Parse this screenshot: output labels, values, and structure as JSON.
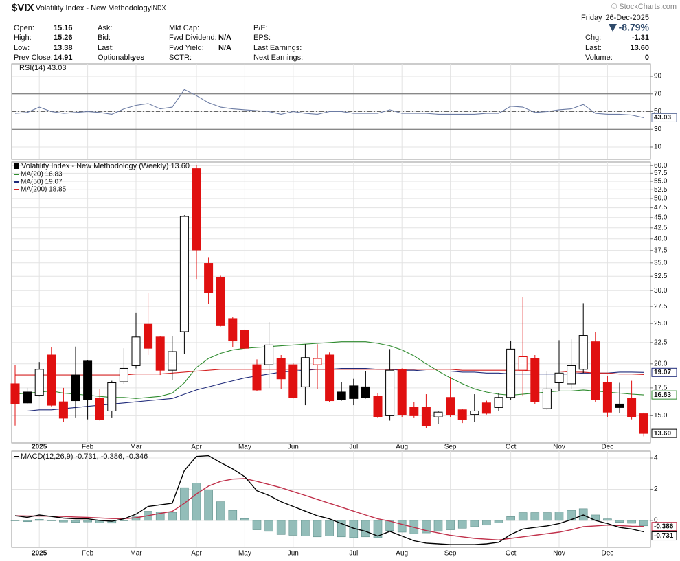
{
  "header": {
    "symbol": "$VIX",
    "name": "Volatility Index - New Methodology",
    "exchange": "INDX",
    "copyright": "© StockCharts.com",
    "weekday": "Friday",
    "date": "26-Dec-2025",
    "change_pct": "-8.79%",
    "columns": [
      [
        {
          "label": "Open:",
          "value": "15.16"
        },
        {
          "label": "High:",
          "value": "15.26"
        },
        {
          "label": "Low:",
          "value": "13.38"
        },
        {
          "label": "Prev Close:",
          "value": "14.91"
        }
      ],
      [
        {
          "label": "Ask:"
        },
        {
          "label": "Bid:"
        },
        {
          "label": "Last:"
        },
        {
          "label": "Optionable",
          "value": "yes"
        }
      ],
      [
        {
          "label": "Mkt Cap:"
        },
        {
          "label": "Fwd Dividend:",
          "value": "N/A"
        },
        {
          "label": "Fwd Yield:",
          "value": "N/A"
        },
        {
          "label": "SCTR:"
        }
      ],
      [
        {
          "label": "P/E:"
        },
        {
          "label": "EPS:"
        },
        {
          "label": "Last Earnings:"
        },
        {
          "label": "Next Earnings:"
        }
      ]
    ],
    "quote": [
      {
        "label": "Chg:",
        "value": "-1.31"
      },
      {
        "label": "Last:",
        "value": "13.60"
      },
      {
        "label": "Volume:",
        "value": "0"
      }
    ]
  },
  "chart_data": [
    {
      "type": "line",
      "title": "RSI(14) 43.03",
      "color": "#6b7ba3",
      "values": [
        48,
        49,
        55,
        50,
        48,
        49,
        50,
        49,
        47,
        53,
        57,
        59,
        53,
        55,
        75,
        68,
        60,
        55,
        53,
        52,
        51,
        50,
        47,
        50,
        48,
        47,
        50,
        50,
        48,
        48,
        48,
        52,
        48,
        48,
        48,
        47,
        47,
        47,
        47,
        48,
        48,
        56,
        55,
        49,
        50,
        52,
        53,
        58,
        48,
        47,
        47,
        46,
        43.03
      ],
      "ylim": [
        -4,
        104
      ],
      "yticks": [
        10,
        30,
        50,
        70,
        90
      ],
      "reference_lines": [
        70,
        50,
        30
      ],
      "grid": true
    },
    {
      "type": "candlestick",
      "title": "Volatility Index - New Methodology (Weekly) 13.60",
      "categories": [
        null,
        null,
        "2025",
        null,
        null,
        null,
        "Feb",
        null,
        null,
        null,
        "Mar",
        null,
        null,
        null,
        null,
        "Apr",
        null,
        null,
        null,
        "May",
        null,
        null,
        null,
        "Jun",
        null,
        null,
        null,
        null,
        "Jul",
        null,
        null,
        null,
        "Aug",
        null,
        null,
        null,
        "Sep",
        null,
        null,
        null,
        null,
        "Oct",
        null,
        null,
        null,
        "Nov",
        null,
        null,
        null,
        "Dec",
        null,
        null,
        null
      ],
      "open": [
        17.9,
        17.1,
        16.8,
        21.0,
        16.2,
        18.8,
        20.3,
        16.5,
        15.4,
        18.1,
        19.8,
        24.9,
        23.2,
        19.3,
        23.9,
        59.0,
        34.9,
        32.3,
        25.7,
        24.1,
        19.9,
        19.9,
        20.6,
        19.9,
        17.6,
        19.9,
        21.0,
        17.1,
        17.7,
        17.6,
        16.7,
        15.0,
        19.4,
        15.7,
        15.7,
        14.9,
        16.6,
        15.5,
        15.1,
        16.1,
        15.7,
        16.6,
        19.3,
        20.6,
        15.6,
        18.0,
        17.9,
        19.4,
        22.6,
        18.0,
        16.0,
        16.5,
        15.16
      ],
      "high": [
        19.9,
        17.5,
        20.2,
        21.9,
        17.5,
        22.0,
        20.4,
        17.4,
        18.2,
        21.8,
        26.5,
        29.6,
        23.3,
        23.3,
        45.6,
        60.1,
        36.0,
        32.6,
        25.9,
        24.2,
        20.5,
        25.2,
        21.0,
        20.1,
        22.3,
        22.3,
        21.3,
        18.1,
        18.4,
        19.2,
        17.0,
        21.7,
        19.5,
        16.2,
        16.9,
        15.4,
        18.6,
        15.6,
        16.9,
        16.3,
        17.0,
        22.7,
        29.0,
        21.0,
        19.2,
        22.8,
        22.9,
        28.0,
        23.9,
        18.7,
        18.0,
        18.2,
        15.26
      ],
      "low": [
        14.2,
        16.0,
        16.7,
        15.8,
        14.5,
        14.8,
        14.7,
        14.6,
        14.8,
        17.9,
        19.5,
        21.0,
        18.8,
        18.3,
        21.1,
        31.9,
        27.9,
        24.6,
        21.9,
        21.7,
        17.2,
        17.5,
        17.4,
        16.5,
        15.9,
        17.4,
        16.2,
        16.3,
        15.9,
        16.5,
        14.8,
        14.6,
        14.9,
        14.8,
        14.0,
        14.3,
        14.9,
        14.4,
        14.5,
        15.1,
        15.4,
        16.4,
        16.7,
        16.0,
        15.5,
        17.2,
        17.4,
        19.0,
        16.2,
        14.9,
        15.2,
        14.7,
        13.38
      ],
      "close": [
        16.0,
        16.1,
        19.4,
        15.9,
        14.8,
        16.3,
        16.4,
        14.7,
        18.0,
        19.5,
        23.2,
        21.8,
        19.3,
        21.4,
        45.3,
        37.6,
        29.7,
        24.7,
        22.7,
        21.8,
        17.3,
        22.2,
        18.4,
        16.6,
        20.7,
        20.6,
        16.3,
        16.4,
        16.5,
        16.6,
        14.9,
        19.3,
        15.1,
        15.0,
        14.2,
        15.3,
        15.1,
        14.7,
        15.4,
        15.2,
        16.6,
        21.7,
        20.8,
        16.2,
        17.4,
        19.0,
        19.8,
        23.4,
        16.4,
        15.3,
        15.7,
        14.91,
        13.6
      ],
      "up_color": "#000000",
      "down_color": "#e01010",
      "series": [
        {
          "name": "MA(20) 16.83",
          "color": "#2e8b2e",
          "values": [
            16.9,
            17.0,
            17.1,
            17.2,
            17.0,
            16.9,
            16.8,
            16.7,
            16.6,
            16.6,
            16.5,
            16.6,
            16.7,
            17.0,
            18.0,
            19.6,
            20.6,
            21.2,
            21.6,
            21.8,
            21.9,
            22.0,
            22.1,
            22.2,
            22.3,
            22.4,
            22.5,
            22.6,
            22.6,
            22.6,
            22.4,
            22.1,
            21.6,
            20.9,
            20.0,
            19.2,
            18.5,
            17.9,
            17.4,
            17.1,
            16.9,
            16.8,
            16.9,
            17.0,
            17.1,
            17.2,
            17.2,
            17.3,
            17.2,
            17.1,
            17.0,
            16.9,
            16.83
          ]
        },
        {
          "name": "MA(50) 19.07",
          "color": "#1f2a7a",
          "values": [
            15.4,
            15.4,
            15.5,
            15.5,
            15.6,
            15.7,
            15.8,
            15.9,
            16.0,
            16.1,
            16.2,
            16.3,
            16.4,
            16.5,
            16.9,
            17.3,
            17.6,
            17.9,
            18.2,
            18.5,
            18.7,
            18.9,
            19.1,
            19.2,
            19.3,
            19.4,
            19.4,
            19.5,
            19.5,
            19.5,
            19.4,
            19.4,
            19.3,
            19.3,
            19.2,
            19.2,
            19.2,
            19.1,
            19.1,
            19.0,
            19.0,
            18.9,
            18.9,
            18.9,
            18.9,
            18.9,
            18.9,
            19.0,
            19.0,
            19.0,
            19.1,
            19.1,
            19.07
          ]
        },
        {
          "name": "MA(200) 18.85",
          "color": "#d42020",
          "values": [
            18.8,
            18.8,
            18.8,
            18.8,
            18.8,
            18.8,
            18.8,
            18.8,
            18.8,
            18.8,
            18.9,
            18.9,
            18.9,
            19.0,
            19.1,
            19.2,
            19.3,
            19.4,
            19.4,
            19.4,
            19.4,
            19.4,
            19.4,
            19.4,
            19.4,
            19.4,
            19.4,
            19.4,
            19.4,
            19.4,
            19.4,
            19.4,
            19.4,
            19.4,
            19.4,
            19.4,
            19.4,
            19.3,
            19.3,
            19.3,
            19.3,
            19.3,
            19.3,
            19.2,
            19.2,
            19.2,
            19.1,
            19.1,
            19.0,
            19.0,
            18.9,
            18.9,
            18.85
          ]
        }
      ],
      "ylim": [
        12.9,
        61.2
      ],
      "log_scale": true,
      "grid": true,
      "yticks": [
        {
          "value": 15,
          "label": "15.0"
        },
        17.5,
        {
          "value": 20,
          "label": "20.0"
        },
        22.5,
        {
          "value": 25,
          "label": "25.0"
        },
        27.5,
        {
          "value": 30,
          "label": "30.0"
        },
        32.5,
        {
          "value": 35,
          "label": "35.0"
        },
        37.5,
        {
          "value": 40,
          "label": "40.0"
        },
        42.5,
        {
          "value": 45,
          "label": "45.0"
        },
        47.5,
        {
          "value": 50,
          "label": "50.0"
        },
        52.5,
        {
          "value": 55,
          "label": "55.0"
        },
        57.5,
        {
          "value": 60,
          "label": "60.0"
        }
      ]
    },
    {
      "type": "macd",
      "title": "MACD(12,26,9) -0.731, -0.386, -0.346",
      "categories": [
        null,
        null,
        "2025",
        null,
        null,
        null,
        "Feb",
        null,
        null,
        null,
        "Mar",
        null,
        null,
        null,
        null,
        "Apr",
        null,
        null,
        null,
        "May",
        null,
        null,
        null,
        "Jun",
        null,
        null,
        null,
        null,
        "Jul",
        null,
        null,
        null,
        "Aug",
        null,
        null,
        null,
        "Sep",
        null,
        null,
        null,
        null,
        "Oct",
        null,
        null,
        null,
        "Nov",
        null,
        null,
        null,
        "Dec",
        null,
        null,
        null
      ],
      "series": [
        {
          "type": "bar",
          "color": "#93bdb9",
          "values": [
            0.0,
            -0.08,
            0.07,
            -0.02,
            -0.1,
            -0.12,
            -0.1,
            -0.16,
            -0.17,
            -0.01,
            0.23,
            0.59,
            0.55,
            0.52,
            2.1,
            2.4,
            1.95,
            1.2,
            0.65,
            0.12,
            -0.6,
            -0.7,
            -0.9,
            -0.95,
            -1.0,
            -1.05,
            -1.0,
            -1.05,
            -1.1,
            -1.05,
            -1.1,
            -0.65,
            -0.75,
            -0.85,
            -0.8,
            -0.7,
            -0.6,
            -0.5,
            -0.4,
            -0.3,
            -0.15,
            0.25,
            0.5,
            0.5,
            0.5,
            0.55,
            0.65,
            0.75,
            0.35,
            0.1,
            -0.12,
            -0.18,
            -0.346
          ]
        },
        {
          "type": "line",
          "color": "#c0304a",
          "values": [
            0.3,
            0.28,
            0.28,
            0.27,
            0.25,
            0.22,
            0.2,
            0.16,
            0.12,
            0.11,
            0.17,
            0.31,
            0.45,
            0.58,
            1.1,
            1.7,
            2.2,
            2.5,
            2.65,
            2.68,
            2.5,
            2.3,
            2.1,
            1.85,
            1.6,
            1.35,
            1.1,
            0.85,
            0.6,
            0.35,
            0.1,
            -0.05,
            -0.25,
            -0.45,
            -0.65,
            -0.8,
            -0.95,
            -1.05,
            -1.15,
            -1.2,
            -1.25,
            -1.15,
            -1.05,
            -0.95,
            -0.85,
            -0.75,
            -0.6,
            -0.4,
            -0.35,
            -0.3,
            -0.33,
            -0.37,
            -0.386
          ]
        },
        {
          "type": "line",
          "color": "#000000",
          "values": [
            0.3,
            0.2,
            0.35,
            0.25,
            0.15,
            0.1,
            0.1,
            0.0,
            -0.05,
            0.1,
            0.4,
            0.9,
            1.0,
            1.1,
            3.2,
            4.1,
            4.15,
            3.7,
            3.3,
            2.8,
            1.9,
            1.6,
            1.2,
            0.9,
            0.6,
            0.3,
            0.1,
            -0.2,
            -0.5,
            -0.7,
            -1.0,
            -0.7,
            -1.0,
            -1.3,
            -1.45,
            -1.5,
            -1.55,
            -1.55,
            -1.55,
            -1.5,
            -1.4,
            -0.9,
            -0.55,
            -0.45,
            -0.35,
            -0.2,
            0.05,
            0.35,
            0.0,
            -0.2,
            -0.45,
            -0.55,
            -0.731
          ]
        }
      ],
      "ylim": [
        -1.72,
        4.44
      ],
      "yticks": [
        0,
        2,
        4
      ],
      "grid": true
    }
  ]
}
